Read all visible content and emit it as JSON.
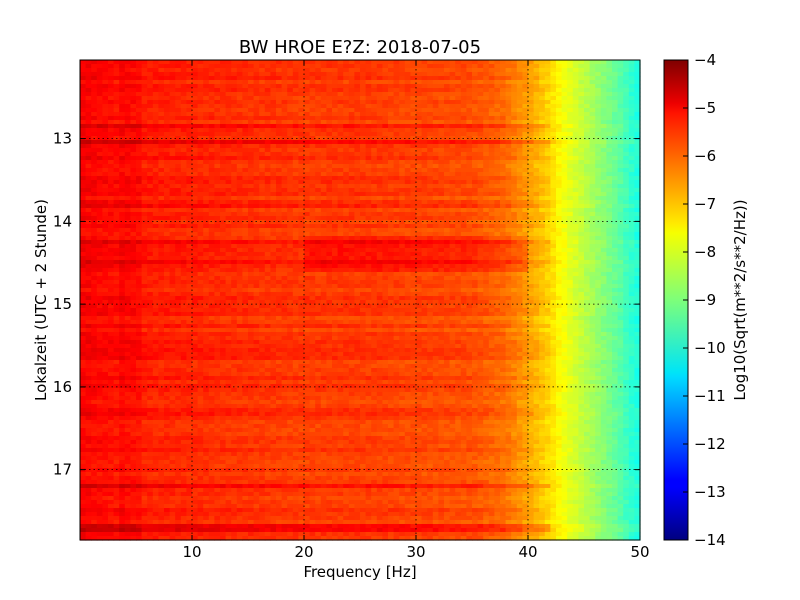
{
  "chart_data": {
    "type": "heatmap",
    "title": "BW HROE E?Z: 2018-07-05",
    "xlabel": "Frequency [Hz]",
    "ylabel": "Lokalzeit (UTC + 2 Stunde)",
    "xlim": [
      0,
      50
    ],
    "ylim": [
      12.05,
      17.85
    ],
    "y_inverted": true,
    "x_ticks": [
      10,
      20,
      30,
      40,
      50
    ],
    "x_tick_labels": [
      "10",
      "20",
      "30",
      "40",
      "50"
    ],
    "y_ticks": [
      13,
      14,
      15,
      16,
      17
    ],
    "y_tick_labels": [
      "13",
      "14",
      "15",
      "16",
      "17"
    ],
    "grid": true,
    "colorbar": {
      "label": "Log10(Sqrt(m**2/s**2/Hz))",
      "range": [
        -14,
        -4
      ],
      "ticks": [
        -4,
        -5,
        -6,
        -7,
        -8,
        -9,
        -10,
        -11,
        -12,
        -13,
        -14
      ],
      "tick_labels": [
        "−4",
        "−5",
        "−6",
        "−7",
        "−8",
        "−9",
        "−10",
        "−11",
        "−12",
        "−13",
        "−14"
      ],
      "colormap": "jet"
    },
    "spectrum_profile": {
      "frequencies": [
        0,
        2,
        5,
        10,
        15,
        20,
        25,
        30,
        35,
        38,
        40,
        41,
        42,
        43,
        44,
        45,
        46,
        47,
        48,
        49,
        50
      ],
      "values": [
        -5.2,
        -5.3,
        -5.5,
        -5.6,
        -5.7,
        -5.8,
        -5.8,
        -5.9,
        -6.0,
        -6.3,
        -6.8,
        -7.1,
        -7.4,
        -7.8,
        -8.1,
        -8.4,
        -8.7,
        -9.0,
        -9.3,
        -9.7,
        -10.0
      ]
    },
    "stronger_rows": [
      12.85,
      13.05,
      13.8,
      14.25,
      14.5,
      17.2,
      17.7
    ],
    "stronger_band": {
      "freq_range": [
        20,
        40
      ],
      "time_range": [
        14.2,
        14.6
      ]
    }
  }
}
